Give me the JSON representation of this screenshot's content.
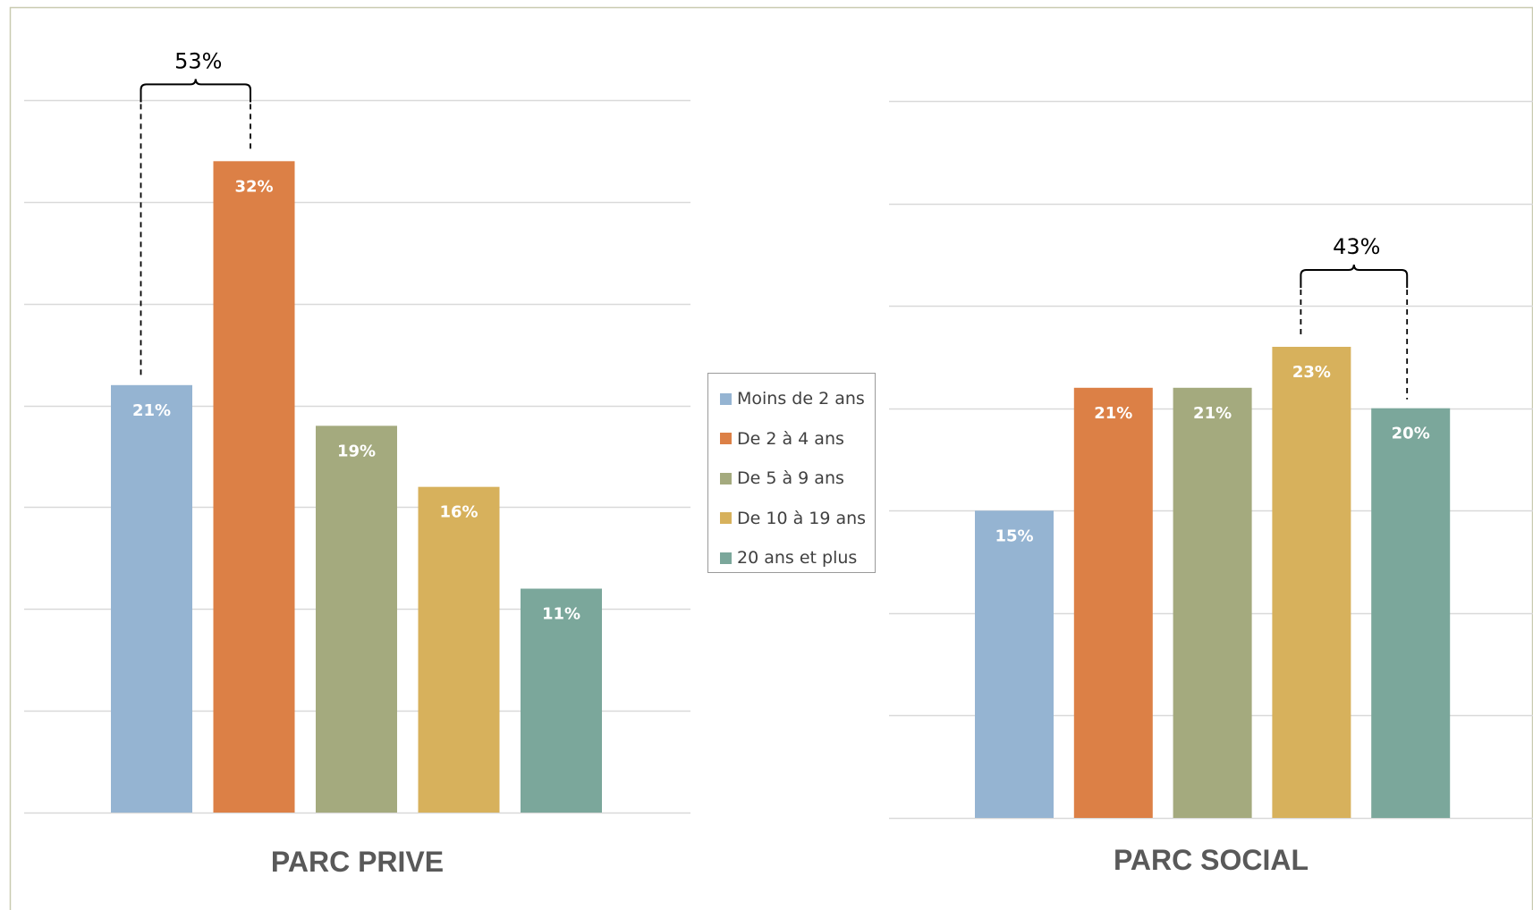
{
  "colors": {
    "frame": "#c9cbb0",
    "grid": "#d9d9d9",
    "brace": "#000000",
    "bar_label": "#ffffff",
    "title": "#595959"
  },
  "legend": {
    "items": [
      {
        "label": "Moins de 2 ans",
        "color": "#95b4d2"
      },
      {
        "label": "De 2 à 4 ans",
        "color": "#dc8046"
      },
      {
        "label": "De 5 à 9 ans",
        "color": "#a4aa7e"
      },
      {
        "label": "De 10 à 19 ans",
        "color": "#d7b15c"
      },
      {
        "label": "20 ans et plus",
        "color": "#7ba79b"
      }
    ]
  },
  "chart_data": [
    {
      "type": "bar",
      "title": "PARC PRIVE",
      "categories": [
        "Moins de 2 ans",
        "De 2 à 4 ans",
        "De 5 à 9 ans",
        "De 10 à 19 ans",
        "20 ans et plus"
      ],
      "values": [
        21,
        32,
        19,
        16,
        11
      ],
      "value_labels": [
        "21%",
        "32%",
        "19%",
        "16%",
        "11%"
      ],
      "ylim": [
        0,
        35
      ],
      "grid": true,
      "annotation": {
        "label": "53%",
        "from_category": 0,
        "to_category": 1
      }
    },
    {
      "type": "bar",
      "title": "PARC SOCIAL",
      "categories": [
        "Moins de 2 ans",
        "De 2 à 4 ans",
        "De 5 à 9 ans",
        "De 10 à 19 ans",
        "20 ans et plus"
      ],
      "values": [
        15,
        21,
        21,
        23,
        20
      ],
      "value_labels": [
        "15%",
        "21%",
        "21%",
        "23%",
        "20%"
      ],
      "ylim": [
        0,
        35
      ],
      "grid": true,
      "annotation": {
        "label": "43%",
        "from_category": 3,
        "to_category": 4
      }
    }
  ]
}
